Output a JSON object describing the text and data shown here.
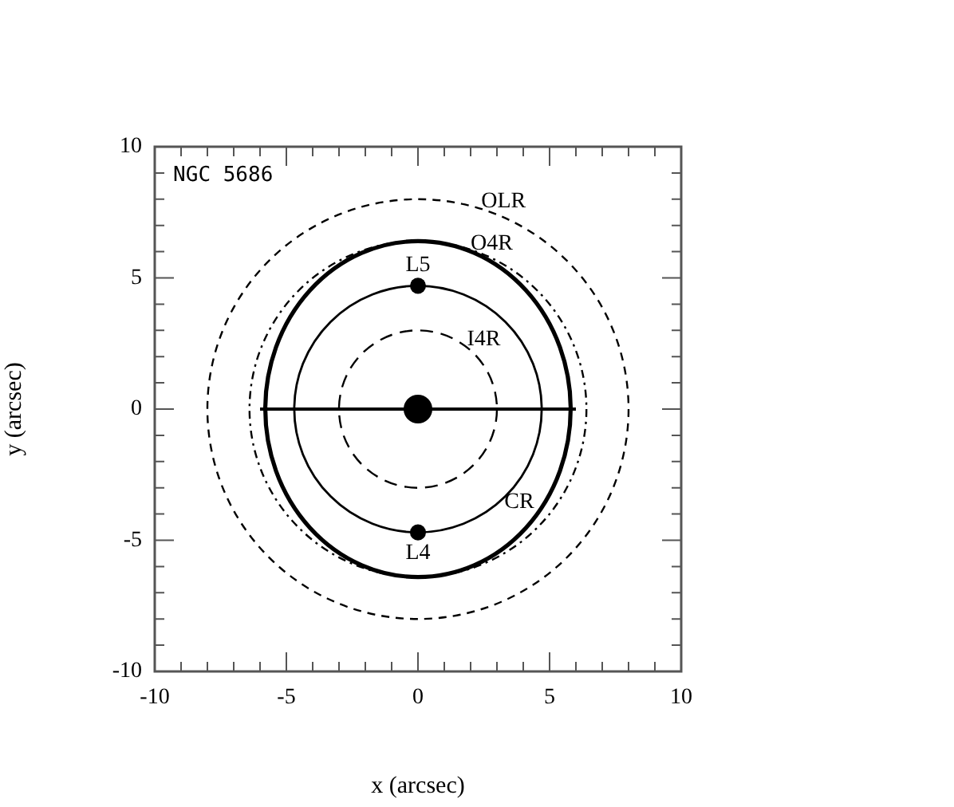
{
  "chart_data": {
    "type": "line",
    "xlabel": "x (arcsec)",
    "ylabel": "y (arcsec)",
    "xlim": [
      -10,
      10
    ],
    "ylim": [
      -10,
      10
    ],
    "xticks": [
      -10,
      {
        "value": -9,
        "label": null
      },
      {
        "value": -8,
        "label": null
      },
      {
        "value": -7,
        "label": null
      },
      {
        "value": -6,
        "label": null
      },
      -5,
      {
        "value": -4,
        "label": null
      },
      {
        "value": -3,
        "label": null
      },
      {
        "value": -2,
        "label": null
      },
      {
        "value": -1,
        "label": null
      },
      0,
      {
        "value": 1,
        "label": null
      },
      {
        "value": 2,
        "label": null
      },
      {
        "value": 3,
        "label": null
      },
      {
        "value": 4,
        "label": null
      },
      5,
      {
        "value": 6,
        "label": null
      },
      {
        "value": 7,
        "label": null
      },
      {
        "value": 8,
        "label": null
      },
      {
        "value": 9,
        "label": null
      },
      10
    ],
    "yticks": [
      -10,
      {
        "value": -9,
        "label": null
      },
      {
        "value": -8,
        "label": null
      },
      {
        "value": -7,
        "label": null
      },
      {
        "value": -6,
        "label": null
      },
      -5,
      {
        "value": -4,
        "label": null
      },
      {
        "value": -3,
        "label": null
      },
      {
        "value": -2,
        "label": null
      },
      {
        "value": -1,
        "label": null
      },
      0,
      {
        "value": 1,
        "label": null
      },
      {
        "value": 2,
        "label": null
      },
      {
        "value": 3,
        "label": null
      },
      {
        "value": 4,
        "label": null
      },
      5,
      {
        "value": 6,
        "label": null
      },
      {
        "value": 7,
        "label": null
      },
      {
        "value": 8,
        "label": null
      },
      {
        "value": 9,
        "label": null
      },
      10
    ],
    "grid": false,
    "legend": false,
    "series": [
      {
        "color": "#000000",
        "line_style": "solid",
        "marker": "none",
        "x": [
          -6,
          6
        ],
        "values": [
          0,
          0
        ]
      },
      {
        "type": "bubble",
        "color": "#000000",
        "x": [
          0,
          0
        ],
        "values": [
          4.7,
          -4.7
        ],
        "sizes": [
          0.31,
          0.31
        ]
      },
      {
        "type": "bubble",
        "color": "#000000",
        "x": [
          0
        ],
        "values": [
          0
        ],
        "sizes": [
          1
        ]
      }
    ],
    "annotations": [
      "NGC 5686",
      "OLR",
      "O4R",
      {
        "text": "L5",
        "x": 0,
        "y": 4.7
      },
      "I4R",
      "CR",
      {
        "text": "L4",
        "x": 0,
        "y": -4.7
      }
    ]
  }
}
